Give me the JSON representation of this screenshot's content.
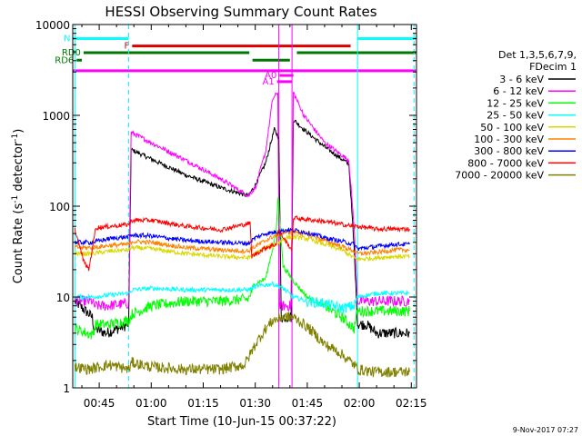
{
  "chart_data": {
    "type": "line",
    "title": "HESSI Observing Summary Count Rates",
    "xlabel": "Start Time (10-Jun-15 00:37:22)",
    "ylabel_main": "Count Rate (s",
    "ylabel_sup1": "-1",
    "ylabel_mid": " detector",
    "ylabel_sup2": "-1",
    "ylabel_end": ")",
    "yscale": "log",
    "ylim": [
      1,
      10000
    ],
    "xlim_minutes": [
      37.37,
      136.5
    ],
    "x_ticks": [
      {
        "minute": 45,
        "label": "00:45"
      },
      {
        "minute": 60,
        "label": "01:00"
      },
      {
        "minute": 75,
        "label": "01:15"
      },
      {
        "minute": 90,
        "label": "01:30"
      },
      {
        "minute": 105,
        "label": "01:45"
      },
      {
        "minute": 120,
        "label": "02:00"
      },
      {
        "minute": 135,
        "label": "02:15"
      }
    ],
    "y_ticks": [
      {
        "value": 1,
        "label": "1"
      },
      {
        "value": 10,
        "label": "10"
      },
      {
        "value": 100,
        "label": "100"
      },
      {
        "value": 1000,
        "label": "1000"
      },
      {
        "value": 10000,
        "label": "10000"
      }
    ],
    "legend": {
      "placement": "right",
      "header1": "Det 1,3,5,6,7,9,",
      "header2": "FDecim 1"
    },
    "series": [
      {
        "name": "3 - 6 keV",
        "color": "#000000",
        "x": [
          38,
          43,
          43.5,
          47,
          53.5,
          54.2,
          60,
          70,
          80,
          88,
          90,
          93,
          95.5,
          96.8,
          97.5,
          100.3,
          101,
          104,
          110,
          117,
          118.5,
          119.5,
          122,
          125,
          130,
          134.5
        ],
        "y": [
          9,
          6,
          4.5,
          4,
          5,
          420,
          330,
          220,
          160,
          130,
          170,
          300,
          700,
          560,
          6,
          6,
          900,
          700,
          450,
          290,
          35,
          5,
          5,
          4,
          4,
          4
        ]
      },
      {
        "name": "6 - 12 keV",
        "color": "#ff00ff",
        "x": [
          38,
          43,
          43.5,
          47,
          53.5,
          54.2,
          60,
          70,
          80,
          88,
          90,
          93,
          95,
          96.5,
          97,
          100.3,
          101,
          104,
          110,
          117,
          118.5,
          119.5,
          125,
          130,
          134.5
        ],
        "y": [
          9,
          9,
          8,
          8,
          8.5,
          650,
          500,
          320,
          200,
          130,
          160,
          400,
          1500,
          1800,
          8,
          8,
          1800,
          1000,
          500,
          320,
          60,
          9,
          9,
          9,
          9
        ]
      },
      {
        "name": "12 - 25 keV",
        "color": "#00ff00",
        "x": [
          38,
          43,
          44,
          48,
          53.5,
          54.5,
          60,
          70,
          80,
          88,
          90,
          93,
          96,
          96.6,
          98,
          101,
          105,
          110,
          115,
          118.5,
          119.5,
          125,
          130,
          134.5
        ],
        "y": [
          4.5,
          3.8,
          5,
          5,
          5.5,
          6.5,
          8,
          9,
          9,
          9.5,
          14,
          16,
          50,
          130,
          22,
          15,
          10,
          8,
          6,
          4.5,
          7,
          7,
          7,
          7
        ]
      },
      {
        "name": "25 - 50 keV",
        "color": "#00ffff",
        "x": [
          38,
          43,
          48,
          53.5,
          54.5,
          60,
          70,
          80,
          88,
          90,
          95,
          98,
          101,
          105,
          110,
          115,
          118.5,
          119.5,
          125,
          130,
          134.5
        ],
        "y": [
          10,
          10,
          10.5,
          11,
          12,
          12.5,
          12,
          12,
          12,
          13,
          14,
          12.5,
          10,
          9,
          8.5,
          7.5,
          8,
          10,
          11,
          11,
          11
        ]
      },
      {
        "name": "50 - 100 keV",
        "color": "#d8d800",
        "x": [
          38,
          43,
          48,
          53.5,
          54.5,
          60,
          70,
          80,
          88,
          90,
          93,
          96,
          99,
          102,
          106,
          110,
          115,
          118.5,
          119.5,
          125,
          130,
          134.5
        ],
        "y": [
          30,
          30,
          32,
          33,
          35,
          34,
          30,
          28,
          27,
          30,
          35,
          38,
          45,
          46,
          43,
          38,
          33,
          27,
          26,
          27,
          28,
          28
        ]
      },
      {
        "name": "100 - 300 keV",
        "color": "#ff8000",
        "x": [
          38,
          43,
          48,
          53.5,
          54.5,
          60,
          70,
          80,
          88,
          90,
          93,
          96,
          99,
          102,
          106,
          110,
          115,
          118.5,
          119.5,
          125,
          130,
          134.5
        ],
        "y": [
          35,
          35,
          37,
          38,
          41,
          40,
          35,
          33,
          32,
          36,
          42,
          48,
          52,
          52,
          48,
          42,
          36,
          32,
          30,
          31,
          33,
          33
        ]
      },
      {
        "name": "300 - 800 keV",
        "color": "#0000ff",
        "x": [
          38,
          43,
          48,
          53.5,
          54.5,
          60,
          70,
          80,
          88,
          90,
          93,
          96,
          99,
          102,
          106,
          110,
          115,
          118.5,
          119.5,
          125,
          130,
          134.5
        ],
        "y": [
          40,
          40,
          44,
          46,
          48,
          47,
          42,
          40,
          39,
          45,
          50,
          52,
          55,
          54,
          50,
          45,
          41,
          38,
          34,
          36,
          38,
          38
        ]
      },
      {
        "name": "800 - 7000 keV",
        "color": "#ff0000",
        "x": [
          38,
          40.5,
          42,
          44,
          48,
          53.5,
          54.5,
          60,
          70,
          80,
          88.5,
          89,
          93,
          96,
          96.6,
          99,
          100.6,
          101,
          104,
          110,
          115,
          118.5,
          119.5,
          125,
          130,
          134.5
        ],
        "y": [
          55,
          25,
          20,
          58,
          60,
          63,
          70,
          70,
          60,
          55,
          65,
          28,
          35,
          38,
          55,
          40,
          33,
          75,
          72,
          68,
          63,
          60,
          60,
          56,
          56,
          56
        ]
      },
      {
        "name": "7000 - 20000 keV",
        "color": "#808000",
        "x": [
          38,
          42,
          48,
          53.5,
          54.5,
          60,
          70,
          80,
          87,
          90,
          93,
          95,
          98,
          101,
          104,
          107,
          110,
          114,
          118.5,
          119.5,
          124,
          130,
          134.5
        ],
        "y": [
          1.7,
          1.6,
          1.8,
          1.6,
          1.9,
          1.7,
          1.6,
          1.6,
          1.8,
          3,
          4.5,
          5.5,
          6,
          6,
          5,
          4,
          3,
          2.5,
          1.8,
          1.6,
          1.5,
          1.5,
          1.5
        ]
      }
    ],
    "annotations": [
      {
        "kind": "bar",
        "label": "N",
        "color": "#00ffff",
        "x0": 37.5,
        "x1": 53.5,
        "y": 7000
      },
      {
        "kind": "bar",
        "label": "",
        "color": "#00ffff",
        "x0": 119.5,
        "x1": 136.3,
        "y": 7000
      },
      {
        "kind": "bar",
        "label": "F",
        "color": "#dd0000",
        "x0": 54.5,
        "x1": 117.5,
        "y": 5800
      },
      {
        "kind": "bar",
        "label": "RD0",
        "color": "#007700",
        "x0": 40.5,
        "x1": 88.3,
        "y": 4900
      },
      {
        "kind": "bar",
        "label": "",
        "color": "#007700",
        "x0": 89.2,
        "x1": 100,
        "y": 4050
      },
      {
        "kind": "bar",
        "label": "",
        "color": "#007700",
        "x0": 102,
        "x1": 136.3,
        "y": 4900
      },
      {
        "kind": "bar",
        "label": "RD6",
        "color": "#007700",
        "x0": 38.5,
        "x1": 40,
        "y": 4050
      },
      {
        "kind": "bar",
        "label": "",
        "color": "#ff00ff",
        "x0": 37.5,
        "x1": 136.3,
        "y": 3100
      },
      {
        "kind": "bar",
        "label": "A0",
        "color": "#ff00ff",
        "x0": 97,
        "x1": 101,
        "y": 2750
      },
      {
        "kind": "bar",
        "label": "A1",
        "color": "#ff00ff",
        "x0": 96.3,
        "x1": 100.6,
        "y": 2350
      }
    ],
    "vertical_lines": [
      {
        "minute": 38,
        "color": "#00ffff",
        "style": "solid"
      },
      {
        "minute": 53.5,
        "color": "#00ffff",
        "style": "dashed"
      },
      {
        "minute": 119.5,
        "color": "#00ffff",
        "style": "solid"
      },
      {
        "minute": 135.8,
        "color": "#00ffff",
        "style": "dashed"
      },
      {
        "minute": 96.8,
        "color": "#ff00ff",
        "style": "solid"
      },
      {
        "minute": 100.6,
        "color": "#ff00ff",
        "style": "solid"
      }
    ],
    "footer": "9-Nov-2017 07:27",
    "grid": false
  }
}
